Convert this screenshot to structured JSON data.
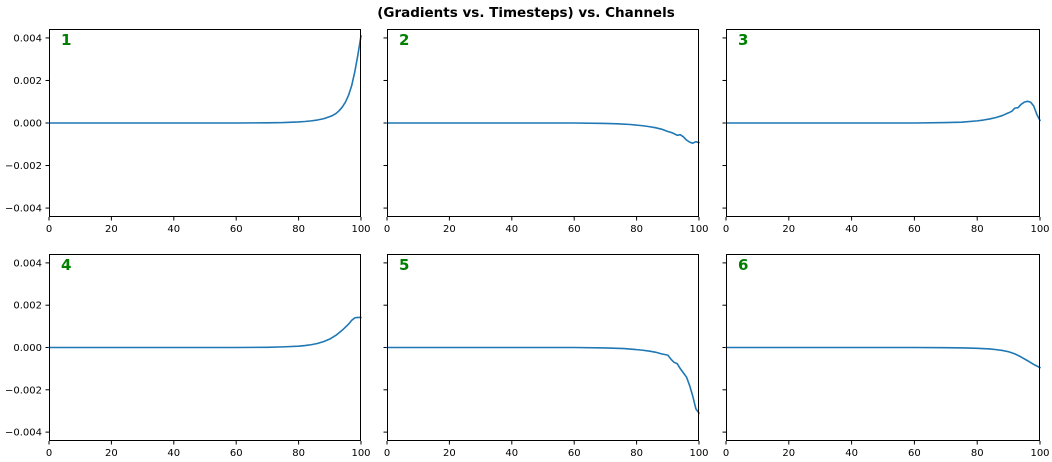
{
  "figure": {
    "title": "(Gradients vs. Timesteps) vs. Channels",
    "line_color": "#1f77b4",
    "channel_label_color": "#008000",
    "spine_color": "#000000",
    "background": "#ffffff"
  },
  "chart_data": [
    {
      "type": "line",
      "subplot_label": "1",
      "xlim": [
        0,
        100
      ],
      "ylim": [
        -0.00442,
        0.00442
      ],
      "xticks": [
        0,
        20,
        40,
        60,
        80,
        100
      ],
      "xtick_labels": [
        "0",
        "20",
        "40",
        "60",
        "80",
        "100"
      ],
      "yticks": [
        -0.004,
        -0.002,
        0,
        0.002,
        0.004
      ],
      "ytick_labels": [
        "−0.004",
        "−0.002",
        "0.000",
        "0.002",
        "0.004"
      ],
      "show_ytick_labels": true,
      "x": [
        0,
        10,
        20,
        30,
        40,
        50,
        60,
        70,
        75,
        80,
        82,
        84,
        86,
        88,
        90,
        91,
        92,
        93,
        94,
        95,
        96,
        97,
        98,
        99,
        100
      ],
      "y": [
        0,
        0,
        0,
        0,
        0,
        0,
        0,
        1e-05,
        2e-05,
        5e-05,
        7e-05,
        0.0001,
        0.00014,
        0.0002,
        0.0003,
        0.00036,
        0.00045,
        0.00058,
        0.00075,
        0.00098,
        0.0013,
        0.00175,
        0.0024,
        0.0032,
        0.0041
      ]
    },
    {
      "type": "line",
      "subplot_label": "2",
      "xlim": [
        0,
        100
      ],
      "ylim": [
        -0.00442,
        0.00442
      ],
      "xticks": [
        0,
        20,
        40,
        60,
        80,
        100
      ],
      "xtick_labels": [
        "0",
        "20",
        "40",
        "60",
        "80",
        "100"
      ],
      "yticks": [
        -0.004,
        -0.002,
        0,
        0.002,
        0.004
      ],
      "ytick_labels": [
        "−0.004",
        "−0.002",
        "0.000",
        "0.002",
        "0.004"
      ],
      "show_ytick_labels": false,
      "x": [
        0,
        10,
        20,
        30,
        40,
        50,
        60,
        70,
        74,
        78,
        80,
        82,
        84,
        86,
        88,
        90,
        91,
        92,
        93,
        94,
        95,
        96,
        97,
        98,
        99,
        100
      ],
      "y": [
        0,
        0,
        0,
        0,
        0,
        0,
        0,
        -2e-05,
        -4e-05,
        -7e-05,
        -0.0001,
        -0.00013,
        -0.00017,
        -0.00022,
        -0.00029,
        -0.0004,
        -0.00044,
        -0.0005,
        -0.00058,
        -0.00055,
        -0.00065,
        -0.0008,
        -0.0009,
        -0.00095,
        -0.00088,
        -0.00092
      ]
    },
    {
      "type": "line",
      "subplot_label": "3",
      "xlim": [
        0,
        100
      ],
      "ylim": [
        -0.00442,
        0.00442
      ],
      "xticks": [
        0,
        20,
        40,
        60,
        80,
        100
      ],
      "xtick_labels": [
        "0",
        "20",
        "40",
        "60",
        "80",
        "100"
      ],
      "yticks": [
        -0.004,
        -0.002,
        0,
        0.002,
        0.004
      ],
      "ytick_labels": [
        "−0.004",
        "−0.002",
        "0.000",
        "0.002",
        "0.004"
      ],
      "show_ytick_labels": false,
      "x": [
        0,
        10,
        20,
        30,
        40,
        50,
        60,
        70,
        75,
        80,
        82,
        84,
        86,
        88,
        90,
        91,
        92,
        93,
        94,
        95,
        96,
        97,
        98,
        99,
        100
      ],
      "y": [
        0,
        0,
        0,
        0,
        0,
        0,
        0,
        2e-05,
        4e-05,
        0.0001,
        0.00014,
        0.00019,
        0.00026,
        0.00035,
        0.00048,
        0.00055,
        0.0007,
        0.00072,
        0.00088,
        0.00098,
        0.00102,
        0.00098,
        0.0008,
        0.0004,
        0.00012
      ]
    },
    {
      "type": "line",
      "subplot_label": "4",
      "xlim": [
        0,
        100
      ],
      "ylim": [
        -0.00442,
        0.00442
      ],
      "xticks": [
        0,
        20,
        40,
        60,
        80,
        100
      ],
      "xtick_labels": [
        "0",
        "20",
        "40",
        "60",
        "80",
        "100"
      ],
      "yticks": [
        -0.004,
        -0.002,
        0,
        0.002,
        0.004
      ],
      "ytick_labels": [
        "−0.004",
        "−0.002",
        "0.000",
        "0.002",
        "0.004"
      ],
      "show_ytick_labels": true,
      "x": [
        0,
        10,
        20,
        30,
        40,
        50,
        60,
        70,
        75,
        80,
        82,
        84,
        86,
        88,
        90,
        92,
        94,
        95,
        96,
        97,
        98,
        99,
        100
      ],
      "y": [
        0,
        0,
        0,
        0,
        0,
        0,
        0,
        1e-05,
        3e-05,
        6e-05,
        9e-05,
        0.00013,
        0.00019,
        0.00028,
        0.0004,
        0.00058,
        0.00082,
        0.00096,
        0.0011,
        0.00128,
        0.0014,
        0.00142,
        0.00142
      ]
    },
    {
      "type": "line",
      "subplot_label": "5",
      "xlim": [
        0,
        100
      ],
      "ylim": [
        -0.00442,
        0.00442
      ],
      "xticks": [
        0,
        20,
        40,
        60,
        80,
        100
      ],
      "xtick_labels": [
        "0",
        "20",
        "40",
        "60",
        "80",
        "100"
      ],
      "yticks": [
        -0.004,
        -0.002,
        0,
        0.002,
        0.004
      ],
      "ytick_labels": [
        "−0.004",
        "−0.002",
        "0.000",
        "0.002",
        "0.004"
      ],
      "show_ytick_labels": false,
      "x": [
        0,
        10,
        20,
        30,
        40,
        50,
        60,
        70,
        76,
        80,
        82,
        84,
        86,
        88,
        89,
        90,
        91,
        92,
        93,
        94,
        95,
        96,
        97,
        98,
        99,
        100
      ],
      "y": [
        0,
        0,
        0,
        0,
        0,
        0,
        0,
        -2e-05,
        -5e-05,
        -0.0001,
        -0.00013,
        -0.00017,
        -0.00022,
        -0.0003,
        -0.00033,
        -0.00036,
        -0.00055,
        -0.0007,
        -0.00076,
        -0.001,
        -0.0012,
        -0.0014,
        -0.0018,
        -0.0023,
        -0.0029,
        -0.0031
      ]
    },
    {
      "type": "line",
      "subplot_label": "6",
      "xlim": [
        0,
        100
      ],
      "ylim": [
        -0.00442,
        0.00442
      ],
      "xticks": [
        0,
        20,
        40,
        60,
        80,
        100
      ],
      "xtick_labels": [
        "0",
        "20",
        "40",
        "60",
        "80",
        "100"
      ],
      "yticks": [
        -0.004,
        -0.002,
        0,
        0.002,
        0.004
      ],
      "ytick_labels": [
        "−0.004",
        "−0.002",
        "0.000",
        "0.002",
        "0.004"
      ],
      "show_ytick_labels": false,
      "x": [
        0,
        10,
        20,
        30,
        40,
        50,
        60,
        70,
        76,
        80,
        84,
        86,
        88,
        90,
        92,
        94,
        96,
        98,
        100
      ],
      "y": [
        0,
        0,
        0,
        0,
        0,
        0,
        0,
        -1e-05,
        -2e-05,
        -4e-05,
        -7e-05,
        -0.0001,
        -0.00014,
        -0.0002,
        -0.0003,
        -0.00045,
        -0.00062,
        -0.0008,
        -0.00095
      ]
    }
  ]
}
